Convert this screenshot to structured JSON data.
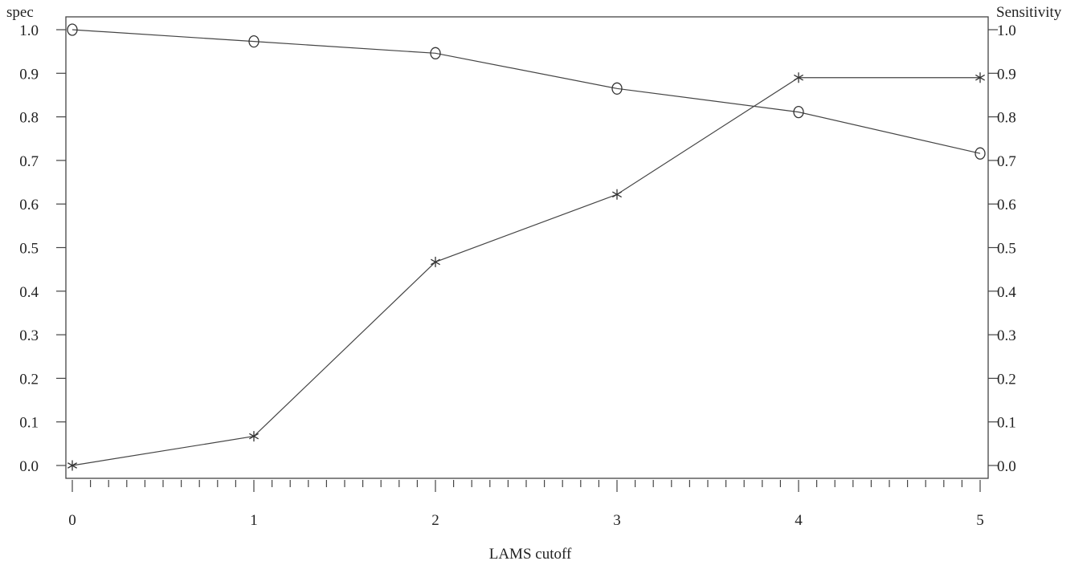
{
  "chart_data": {
    "type": "line",
    "xlabel": "LAMS cutoff",
    "ylabel_left": "spec",
    "ylabel_right": "Sensitivity",
    "xlim": [
      0,
      5
    ],
    "ylim": [
      0,
      1
    ],
    "x_ticks": [
      "0",
      "1",
      "2",
      "3",
      "4",
      "5"
    ],
    "y_ticks": [
      "0.0",
      "0.1",
      "0.2",
      "0.3",
      "0.4",
      "0.5",
      "0.6",
      "0.7",
      "0.8",
      "0.9",
      "1.0"
    ],
    "grid": false,
    "series": [
      {
        "name": "spec",
        "axis": "left",
        "marker": "circle",
        "x": [
          0,
          1,
          2,
          3,
          4,
          5
        ],
        "values": [
          1.0,
          0.973,
          0.946,
          0.865,
          0.811,
          0.716
        ]
      },
      {
        "name": "Sensitivity",
        "axis": "right",
        "marker": "star",
        "x": [
          0,
          1,
          2,
          3,
          4,
          5
        ],
        "values": [
          0.0,
          0.067,
          0.467,
          0.622,
          0.89,
          0.89
        ]
      }
    ]
  }
}
